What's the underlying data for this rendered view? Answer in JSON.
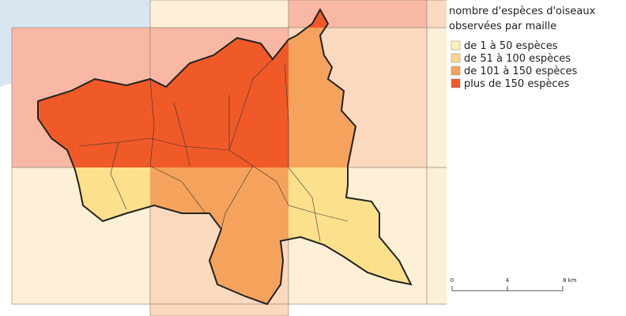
{
  "legend": {
    "title": [
      "nombre d'espèces d'oiseaux",
      "observées par maille"
    ],
    "items": [
      {
        "label": "de 1 à 50 espèces",
        "color": "#fdf0b8"
      },
      {
        "label": "de 51 à 100 espèces",
        "color": "#fcd68c"
      },
      {
        "label": "de 101 à 150 espèces",
        "color": "#f5a35c"
      },
      {
        "label": "plus de 150 espèces",
        "color": "#f05a28"
      }
    ]
  },
  "scale": {
    "labels": [
      "0",
      "4",
      "8 km"
    ]
  }
}
